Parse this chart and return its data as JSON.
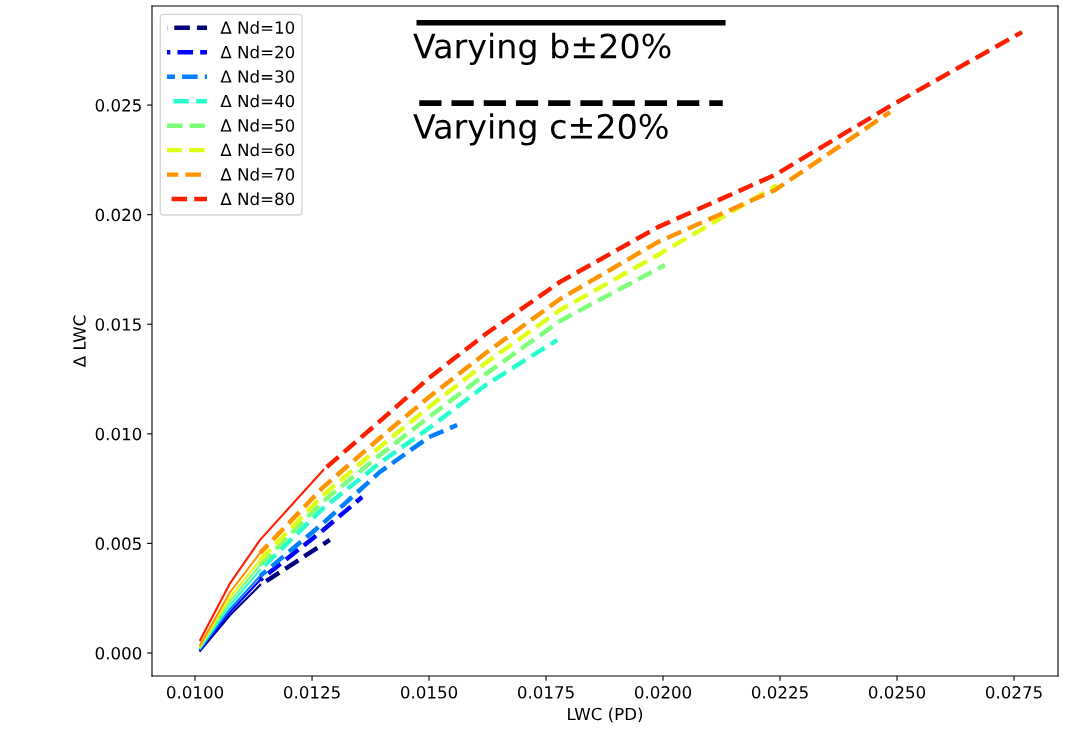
{
  "chart_data": {
    "type": "line",
    "xlabel": "LWC (PD)",
    "ylabel": "Δ LWC",
    "annotations": [
      "Varying b±20%",
      "Varying c±20%"
    ],
    "xlim": [
      0.00908,
      0.02844
    ],
    "ylim": [
      -0.00105,
      0.02952
    ],
    "xticks": [
      {
        "value": 0.01,
        "label": "0.0100"
      },
      {
        "value": 0.0125,
        "label": "0.0125"
      },
      {
        "value": 0.015,
        "label": "0.0150"
      },
      {
        "value": 0.0175,
        "label": "0.0175"
      },
      {
        "value": 0.02,
        "label": "0.0200"
      },
      {
        "value": 0.0225,
        "label": "0.0225"
      },
      {
        "value": 0.025,
        "label": "0.0250"
      },
      {
        "value": 0.0275,
        "label": "0.0275"
      }
    ],
    "yticks": [
      {
        "value": 0.0,
        "label": "0.000"
      },
      {
        "value": 0.005,
        "label": "0.005"
      },
      {
        "value": 0.01,
        "label": "0.010"
      },
      {
        "value": 0.015,
        "label": "0.015"
      },
      {
        "value": 0.02,
        "label": "0.020"
      },
      {
        "value": 0.025,
        "label": "0.025"
      }
    ],
    "grid": false,
    "legend": "top left",
    "marker": "none",
    "series": [
      {
        "color": "#00007f",
        "line_style": "solid",
        "x": [
          0.01011,
          0.01075,
          0.01139
        ],
        "values": [
          0.0001,
          0.00173,
          0.0031
        ]
      },
      {
        "color": "#0000ff",
        "line_style": "solid",
        "x": [
          0.01011,
          0.01075,
          0.01139
        ],
        "values": [
          0.00014,
          0.00187,
          0.00333
        ]
      },
      {
        "color": "#0080ff",
        "line_style": "solid",
        "x": [
          0.01011,
          0.01075,
          0.01139
        ],
        "values": [
          0.00018,
          0.00201,
          0.00351
        ]
      },
      {
        "color": "#29ffce",
        "line_style": "solid",
        "x": [
          0.01011,
          0.01075,
          0.01139
        ],
        "values": [
          0.00023,
          0.00219,
          0.00379
        ]
      },
      {
        "color": "#7dff7a",
        "line_style": "solid",
        "x": [
          0.01011,
          0.01075,
          0.01139
        ],
        "values": [
          0.00027,
          0.00237,
          0.00401
        ]
      },
      {
        "color": "#e0ff18",
        "line_style": "solid",
        "x": [
          0.01011,
          0.01075,
          0.01139
        ],
        "values": [
          0.00032,
          0.00255,
          0.00424
        ]
      },
      {
        "color": "#ff9400",
        "line_style": "solid",
        "x": [
          0.01011,
          0.01075,
          0.01139
        ],
        "values": [
          0.00036,
          0.00278,
          0.00456
        ]
      },
      {
        "color": "#ff1e00",
        "line_style": "solid",
        "x": [
          0.01011,
          0.01075,
          0.01139,
          0.01274
        ],
        "values": [
          0.00059,
          0.00319,
          0.00516,
          0.00835
        ]
      },
      {
        "name": "Δ Nd=10",
        "color": "#00007f",
        "line_style": "dashed",
        "x": [
          0.01139,
          0.01288
        ],
        "values": [
          0.0031,
          0.00516
        ]
      },
      {
        "name": "Δ Nd=20",
        "color": "#0000ff",
        "line_style": "dashed",
        "x": [
          0.01139,
          0.01274,
          0.01357
        ],
        "values": [
          0.00333,
          0.00561,
          0.00712
        ]
      },
      {
        "name": "Δ Nd=30",
        "color": "#0080ff",
        "line_style": "dashed",
        "x": [
          0.01139,
          0.01274,
          0.01395,
          0.015,
          0.0156
        ],
        "values": [
          0.00351,
          0.00593,
          0.00826,
          0.00985,
          0.0104
        ]
      },
      {
        "name": "Δ Nd=40",
        "color": "#29ffce",
        "line_style": "dashed",
        "x": [
          0.01139,
          0.01274,
          0.01395,
          0.015,
          0.01624,
          0.01774
        ],
        "values": [
          0.00379,
          0.00661,
          0.00867,
          0.01026,
          0.01227,
          0.01428
        ]
      },
      {
        "name": "Δ Nd=50",
        "color": "#7dff7a",
        "line_style": "dashed",
        "x": [
          0.01139,
          0.01274,
          0.01395,
          0.015,
          0.01624,
          0.0178,
          0.02004
        ],
        "values": [
          0.00401,
          0.00693,
          0.00903,
          0.01077,
          0.01277,
          0.01515,
          0.0177
        ]
      },
      {
        "name": "Δ Nd=60",
        "color": "#e0ff18",
        "line_style": "dashed",
        "x": [
          0.01139,
          0.01274,
          0.01395,
          0.015,
          0.01624,
          0.0178,
          0.01989,
          0.02244
        ],
        "values": [
          0.00424,
          0.00721,
          0.0094,
          0.01122,
          0.01328,
          0.01565,
          0.01816,
          0.02135
        ]
      },
      {
        "name": "Δ Nd=70",
        "color": "#ff9400",
        "line_style": "dashed",
        "x": [
          0.01139,
          0.01274,
          0.01395,
          0.015,
          0.01624,
          0.0178,
          0.01989,
          0.02239,
          0.02485
        ],
        "values": [
          0.00456,
          0.00757,
          0.00981,
          0.01168,
          0.01373,
          0.01615,
          0.01875,
          0.02112,
          0.02468
        ]
      },
      {
        "name": "Δ Nd=80",
        "color": "#ff1e00",
        "line_style": "dashed",
        "x": [
          0.01274,
          0.01395,
          0.015,
          0.01624,
          0.0178,
          0.01989,
          0.02239,
          0.02485,
          0.02767
        ],
        "values": [
          0.00835,
          0.01058,
          0.01255,
          0.0146,
          0.01693,
          0.01943,
          0.02181,
          0.02495,
          0.02833
        ]
      }
    ]
  }
}
